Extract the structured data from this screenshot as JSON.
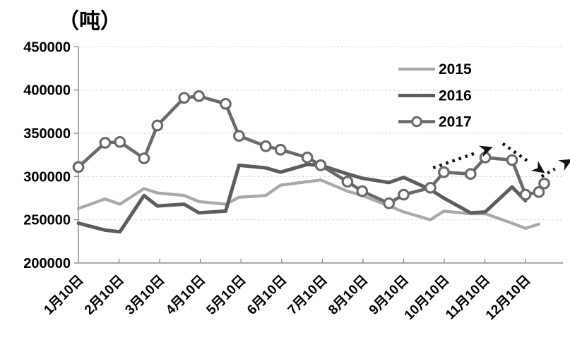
{
  "chart_data": {
    "type": "line",
    "unit_label": "（吨）",
    "x_labels": [
      "1月10日",
      "2月10日",
      "3月10日",
      "4月10日",
      "5月10日",
      "6月10日",
      "7月10日",
      "8月10日",
      "9月10日",
      "10月10日",
      "11月10日",
      "12月10日"
    ],
    "y_ticks": [
      450000,
      400000,
      350000,
      300000,
      250000,
      200000
    ],
    "ylim": [
      200000,
      450000
    ],
    "x_axis_type": "time, day-of-year, points twice monthly (10th and ~30th)",
    "grid": "horizontal dashed",
    "legend_position": "upper-right-inside",
    "colors": {
      "grid": "#dcdcdc",
      "axis": "#8f8f8f",
      "arrow": "#111111",
      "marker_fill": "#ffffff"
    },
    "series": [
      {
        "name": "2015",
        "color": "#a9a9a9",
        "marker": "none",
        "points": [
          [
            10,
            263000
          ],
          [
            30,
            274000
          ],
          [
            41,
            268000
          ],
          [
            59,
            286000
          ],
          [
            69,
            281000
          ],
          [
            89,
            278000
          ],
          [
            100,
            271000
          ],
          [
            120,
            268000
          ],
          [
            130,
            276000
          ],
          [
            150,
            278000
          ],
          [
            161,
            290000
          ],
          [
            181,
            294000
          ],
          [
            191,
            296000
          ],
          [
            211,
            283000
          ],
          [
            222,
            278000
          ],
          [
            242,
            266000
          ],
          [
            253,
            259000
          ],
          [
            273,
            250000
          ],
          [
            283,
            260000
          ],
          [
            303,
            257000
          ],
          [
            314,
            257000
          ],
          [
            334,
            246000
          ],
          [
            344,
            240000
          ],
          [
            354,
            245000
          ]
        ]
      },
      {
        "name": "2016",
        "color": "#5d5d5d",
        "marker": "none",
        "points": [
          [
            10,
            246000
          ],
          [
            30,
            238000
          ],
          [
            41,
            236000
          ],
          [
            59,
            278000
          ],
          [
            69,
            266000
          ],
          [
            89,
            268000
          ],
          [
            100,
            258000
          ],
          [
            120,
            260000
          ],
          [
            130,
            313000
          ],
          [
            150,
            310000
          ],
          [
            161,
            305000
          ],
          [
            181,
            314000
          ],
          [
            191,
            313000
          ],
          [
            211,
            303000
          ],
          [
            222,
            298000
          ],
          [
            242,
            293000
          ],
          [
            253,
            299000
          ],
          [
            273,
            285000
          ],
          [
            283,
            275000
          ],
          [
            303,
            258000
          ],
          [
            314,
            259000
          ],
          [
            334,
            288000
          ],
          [
            344,
            272000
          ]
        ]
      },
      {
        "name": "2017",
        "color": "#6a6a6a",
        "marker": "circle-open",
        "points": [
          [
            10,
            311000
          ],
          [
            30,
            339000
          ],
          [
            41,
            340000
          ],
          [
            59,
            321000
          ],
          [
            69,
            359000
          ],
          [
            89,
            391000
          ],
          [
            100,
            393000
          ],
          [
            120,
            384000
          ],
          [
            130,
            347000
          ],
          [
            150,
            335000
          ],
          [
            161,
            331000
          ],
          [
            181,
            322000
          ],
          [
            191,
            313000
          ],
          [
            211,
            294000
          ],
          [
            222,
            283000
          ],
          [
            242,
            269000
          ],
          [
            253,
            279000
          ],
          [
            273,
            287000
          ],
          [
            283,
            305000
          ],
          [
            303,
            303000
          ],
          [
            314,
            322000
          ],
          [
            334,
            319000
          ],
          [
            344,
            279000
          ],
          [
            354,
            282000
          ],
          [
            358,
            292000
          ]
        ]
      }
    ],
    "annotations": {
      "style": "black dotted arrows indicating trend",
      "arrows": [
        {
          "from": [
            275,
            310000
          ],
          "to": [
            312,
            330000
          ]
        },
        {
          "from": [
            327,
            338000
          ],
          "to": [
            352,
            311000
          ]
        },
        {
          "from": [
            356,
            300000
          ],
          "to": [
            372,
            314000
          ]
        }
      ]
    }
  }
}
